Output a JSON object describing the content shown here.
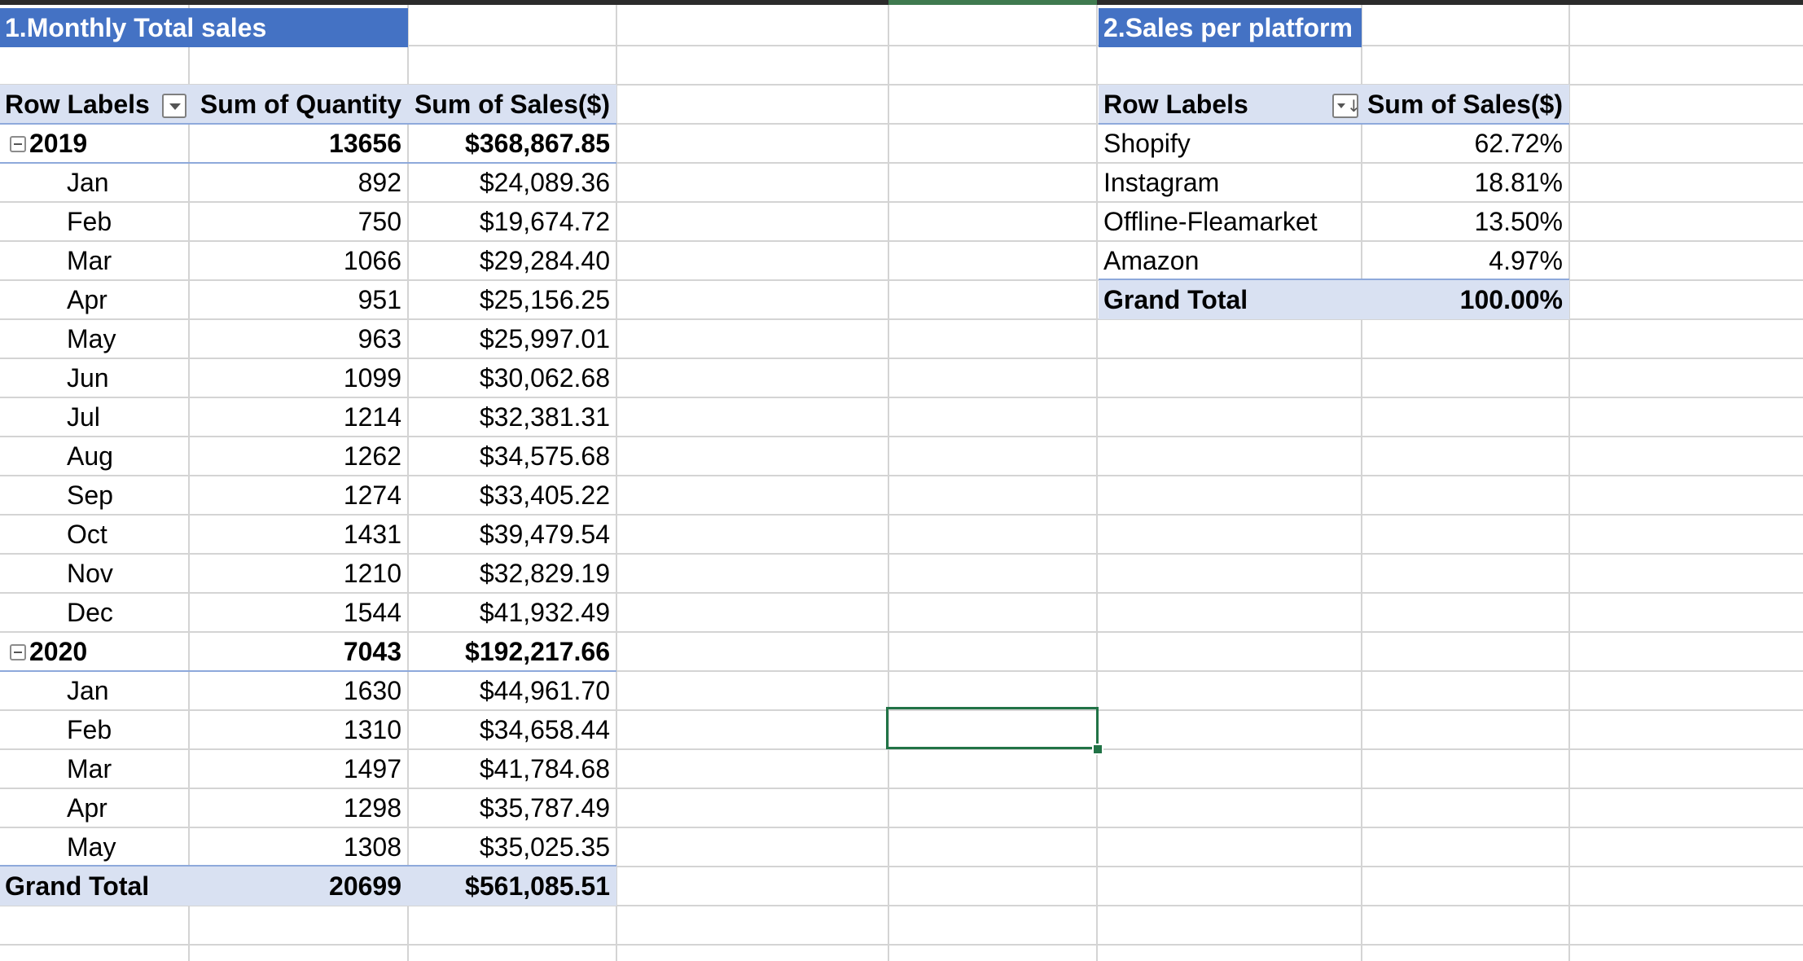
{
  "sheet": {
    "selected_cell_label": "Selected cell"
  },
  "pivot1": {
    "title": "1.Monthly Total sales",
    "headers": {
      "row_labels": "Row Labels",
      "quantity": "Sum of Quantity",
      "sales": "Sum of Sales($)"
    },
    "year2019": {
      "label": "2019",
      "quantity": "13656",
      "sales": "$368,867.85",
      "months": [
        {
          "month": "Jan",
          "quantity": "892",
          "sales": "$24,089.36"
        },
        {
          "month": "Feb",
          "quantity": "750",
          "sales": "$19,674.72"
        },
        {
          "month": "Mar",
          "quantity": "1066",
          "sales": "$29,284.40"
        },
        {
          "month": "Apr",
          "quantity": "951",
          "sales": "$25,156.25"
        },
        {
          "month": "May",
          "quantity": "963",
          "sales": "$25,997.01"
        },
        {
          "month": "Jun",
          "quantity": "1099",
          "sales": "$30,062.68"
        },
        {
          "month": "Jul",
          "quantity": "1214",
          "sales": "$32,381.31"
        },
        {
          "month": "Aug",
          "quantity": "1262",
          "sales": "$34,575.68"
        },
        {
          "month": "Sep",
          "quantity": "1274",
          "sales": "$33,405.22"
        },
        {
          "month": "Oct",
          "quantity": "1431",
          "sales": "$39,479.54"
        },
        {
          "month": "Nov",
          "quantity": "1210",
          "sales": "$32,829.19"
        },
        {
          "month": "Dec",
          "quantity": "1544",
          "sales": "$41,932.49"
        }
      ]
    },
    "year2020": {
      "label": "2020",
      "quantity": "7043",
      "sales": "$192,217.66",
      "months": [
        {
          "month": "Jan",
          "quantity": "1630",
          "sales": "$44,961.70"
        },
        {
          "month": "Feb",
          "quantity": "1310",
          "sales": "$34,658.44"
        },
        {
          "month": "Mar",
          "quantity": "1497",
          "sales": "$41,784.68"
        },
        {
          "month": "Apr",
          "quantity": "1298",
          "sales": "$35,787.49"
        },
        {
          "month": "May",
          "quantity": "1308",
          "sales": "$35,025.35"
        }
      ]
    },
    "grand_total": {
      "label": "Grand Total",
      "quantity": "20699",
      "sales": "$561,085.51"
    }
  },
  "pivot2": {
    "title": "2.Sales per platform",
    "headers": {
      "row_labels": "Row Labels",
      "sales": "Sum of Sales($)"
    },
    "rows": [
      {
        "platform": "Shopify",
        "share": "62.72%"
      },
      {
        "platform": "Instagram",
        "share": "18.81%"
      },
      {
        "platform": "Offline-Fleamarket",
        "share": "13.50%"
      },
      {
        "platform": "Amazon",
        "share": "4.97%"
      }
    ],
    "grand_total": {
      "label": "Grand Total",
      "share": "100.00%"
    }
  },
  "colors": {
    "title_fill": "#4472c4",
    "header_fill": "#d9e1f2",
    "header_rule": "#8ea9db",
    "gridline": "#d4d4d4",
    "selection": "#217346"
  }
}
